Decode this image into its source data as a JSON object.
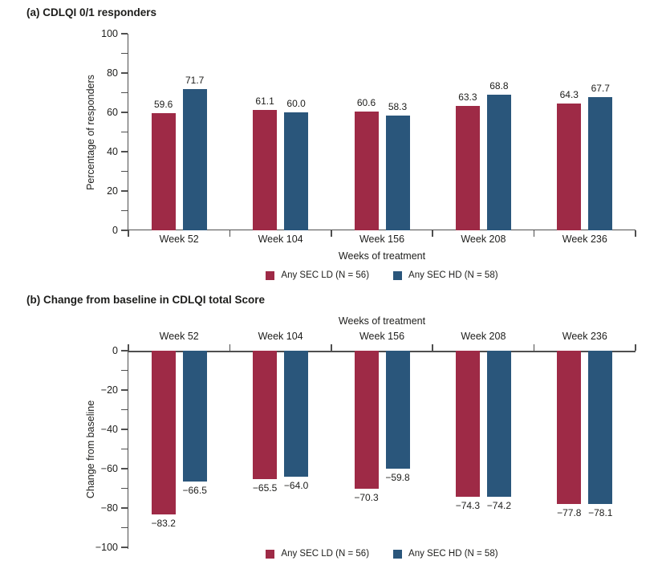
{
  "panel_a": {
    "title": "(a) CDLQI 0/1 responders",
    "ylabel": "Percentage of responders",
    "xlabel": "Weeks of treatment"
  },
  "panel_b": {
    "title": "(b) Change from baseline in CDLQI total Score",
    "xlabel": "Weeks of treatment",
    "ylabel": "Change from baseline"
  },
  "colors": {
    "ld": "#9e2a46",
    "hd": "#2a567b",
    "axis": "#4f4f4f",
    "text": "#1d1d1b"
  },
  "chart_data": [
    {
      "type": "bar",
      "title": "(a) CDLQI 0/1 responders",
      "categories": [
        "Week 52",
        "Week 104",
        "Week 156",
        "Week 208",
        "Week 236"
      ],
      "series": [
        {
          "name": "Any SEC LD (N = 56)",
          "color": "#9e2a46",
          "values": [
            59.6,
            61.1,
            60.6,
            63.3,
            64.3
          ]
        },
        {
          "name": "Any SEC HD (N = 58)",
          "color": "#2a567b",
          "values": [
            71.7,
            60.0,
            58.3,
            68.8,
            67.7
          ]
        }
      ],
      "xlabel": "Weeks of treatment",
      "ylabel": "Percentage of responders",
      "ylim": [
        0,
        100
      ],
      "yticks": [
        0,
        20,
        40,
        60,
        80,
        100
      ],
      "minor_tick_step": 10,
      "bar_value_labels": true,
      "xaxis_position": "bottom",
      "legend_position": "bottom",
      "grid": false
    },
    {
      "type": "bar",
      "title": "(b) Change from baseline in CDLQI total Score",
      "categories": [
        "Week 52",
        "Week 104",
        "Week 156",
        "Week 208",
        "Week 236"
      ],
      "series": [
        {
          "name": "Any SEC LD (N = 56)",
          "color": "#9e2a46",
          "values": [
            -83.2,
            -65.5,
            -70.3,
            -74.3,
            -77.8
          ]
        },
        {
          "name": "Any SEC HD (N = 58)",
          "color": "#2a567b",
          "values": [
            -66.5,
            -64.0,
            -59.8,
            -74.2,
            -78.1
          ]
        }
      ],
      "xlabel": "Weeks of treatment",
      "ylabel": "Change from baseline",
      "ylim": [
        -100,
        0
      ],
      "yticks": [
        0,
        -20,
        -40,
        -60,
        -80,
        -100
      ],
      "minor_tick_step": 10,
      "bar_value_labels": true,
      "xaxis_position": "top",
      "legend_position": "bottom",
      "grid": false
    }
  ]
}
